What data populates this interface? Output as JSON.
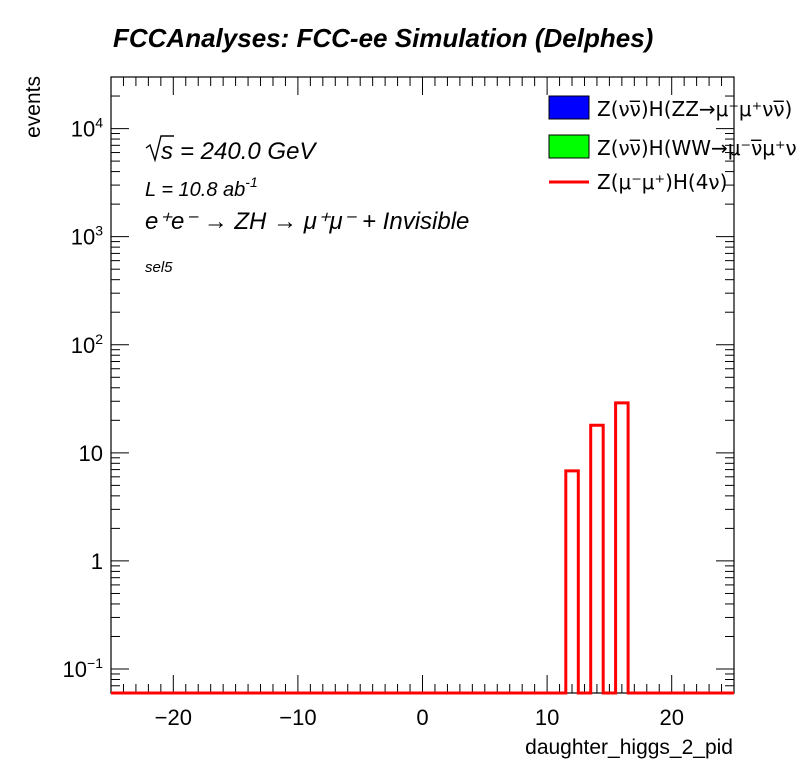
{
  "chart_data": {
    "type": "bar",
    "title": "FCCAnalyses: FCC-ee Simulation (Delphes)",
    "xlabel": "daughter_higgs_2_pid",
    "ylabel": "events",
    "y_scale": "log",
    "xlim": [
      -25,
      25
    ],
    "ylim": [
      0.06,
      30000
    ],
    "x_ticks": [
      -20,
      -10,
      0,
      10,
      20
    ],
    "x_tick_labels": [
      "−20",
      "−10",
      "0",
      "10",
      "20"
    ],
    "y_ticks": [
      0.1,
      1,
      10,
      100,
      1000,
      10000
    ],
    "grid": false,
    "legend_position": "top-right",
    "annotations": {
      "sqrt_s": "= 240.0 GeV",
      "lumi": "L = 10.8 ab",
      "lumi_exp": "-1",
      "process": "e⁺e⁻ → ZH → μ⁺μ⁻ + Invisible",
      "selection": "sel5"
    },
    "series": [
      {
        "name": "Z(νν̅)H(ZZ→μ⁻μ⁺νν̅)",
        "style": "filled",
        "color": "#0000ff",
        "bins": []
      },
      {
        "name": "Z(νν̅)H(WW→μ⁻ν̅μ⁺ν)",
        "style": "filled",
        "color": "#00ff00",
        "bins": []
      },
      {
        "name": "Z(μ⁻μ⁺)H(4ν)",
        "style": "line",
        "color": "#ff0000",
        "bins": [
          {
            "x_low": 11.5,
            "x_high": 12.5,
            "value": 6.8
          },
          {
            "x_low": 13.5,
            "x_high": 14.5,
            "value": 18
          },
          {
            "x_low": 15.5,
            "x_high": 16.5,
            "value": 29
          }
        ]
      }
    ]
  }
}
